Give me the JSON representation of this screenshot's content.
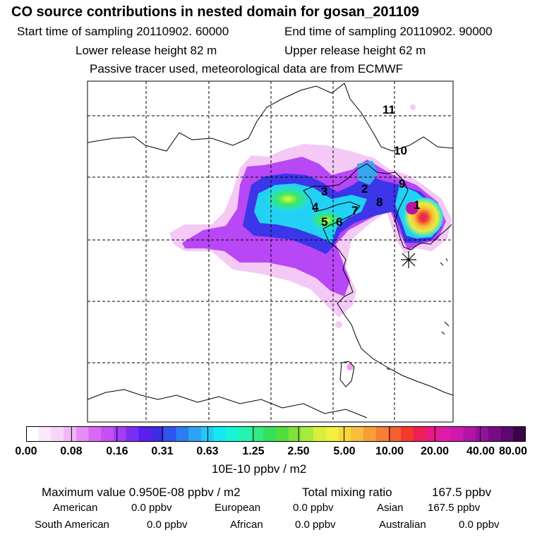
{
  "header": {
    "title": "CO  source contributions in nested domain for gosan_201109",
    "start": "Start time of sampling 20110902. 60000",
    "end": "End time of sampling 20110902. 90000",
    "lower": "Lower release height   82 m",
    "upper": "Upper release height   62 m",
    "tracer": "Passive tracer used, meteorological data are from ECMWF"
  },
  "map": {
    "region_labels": [
      "1",
      "2",
      "3",
      "4",
      "5",
      "6",
      "7",
      "8",
      "9",
      "10",
      "11"
    ],
    "receptor_marker": "station-asterisk"
  },
  "colorbar": {
    "colors": [
      "#ffffff",
      "#fbe9fb",
      "#f7d4f8",
      "#f0b8f6",
      "#e58cf5",
      "#d868f5",
      "#c64ff6",
      "#a33ef6",
      "#7a2ff5",
      "#5a1fee",
      "#3f2ce6",
      "#2f55ee",
      "#2a7df3",
      "#2ca3f6",
      "#21c9f6",
      "#12e9f4",
      "#15f6d6",
      "#25f3b0",
      "#2fec84",
      "#34e05a",
      "#4fde3b",
      "#7fe43a",
      "#aaea3b",
      "#d8ef3c",
      "#f2ef3d",
      "#f7d83c",
      "#f8bd3a",
      "#f79f36",
      "#f57f32",
      "#f45f2f",
      "#f43a2c",
      "#f01f55",
      "#ea1985",
      "#e21aa8",
      "#cf18b0",
      "#b314a8",
      "#95109a",
      "#780c86",
      "#5c086d",
      "#3c0448"
    ],
    "tick_labels": [
      "0.00",
      "0.08",
      "0.16",
      "0.31",
      "0.63",
      "1.25",
      "2.50",
      "5.00",
      "10.00",
      "20.00",
      "40.00",
      "80.00"
    ],
    "unit": "10E-10 ppbv / m2"
  },
  "summary": {
    "max_label": "Maximum value  0.950E-08 ppbv / m2",
    "total_label": "Total mixing ratio",
    "total_value": "167.5 ppbv",
    "rows": [
      [
        {
          "name": "American",
          "value": "0.0 ppbv"
        },
        {
          "name": "European",
          "value": "0.0 ppbv"
        },
        {
          "name": "Asian",
          "value": "167.5 ppbv"
        }
      ],
      [
        {
          "name": "South American",
          "value": "0.0 ppbv"
        },
        {
          "name": "African",
          "value": "0.0 ppbv"
        },
        {
          "name": "Australian",
          "value": "0.0 ppbv"
        }
      ]
    ]
  }
}
